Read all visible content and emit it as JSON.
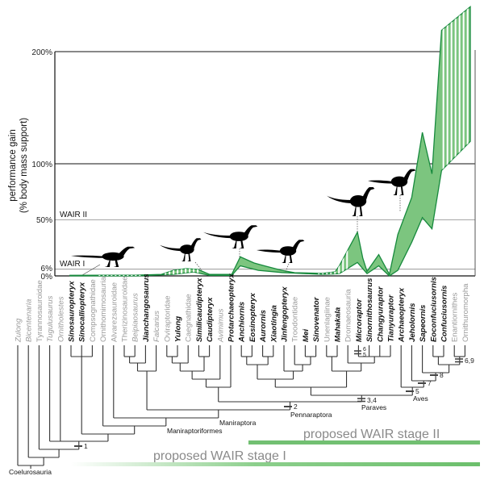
{
  "chart_data": {
    "type": "area",
    "ylabel_line1": "performance gain",
    "ylabel_line2": "(% body mass support)",
    "yticks": [
      "200%",
      "100%",
      "50%",
      "6%",
      "0%"
    ],
    "ytick_values": [
      200,
      100,
      50,
      6,
      0
    ],
    "ylim": [
      0,
      200
    ],
    "reference_lines": [
      {
        "label": "WAIR I",
        "value": 6
      },
      {
        "label": "WAIR II",
        "value": 50
      }
    ],
    "x_categories": "taxa (same order as phylogeny.taxa)",
    "series": [
      {
        "upper": [
          [
            4.9,
            0.5
          ],
          [
            11.2,
            0.7
          ],
          [
            13.5,
            1.4
          ],
          [
            14.6,
            5
          ],
          [
            15.8,
            6.5
          ],
          [
            16.9,
            5.8
          ],
          [
            18.0,
            1.4
          ],
          [
            20.1,
            1.4
          ],
          [
            20.9,
            17
          ],
          [
            22.2,
            11.5
          ],
          [
            23.3,
            8.6
          ],
          [
            24.8,
            5
          ],
          [
            26.0,
            2.9
          ],
          [
            28.6,
            2.2
          ],
          [
            29.8,
            3.6
          ],
          [
            30.2,
            9
          ],
          [
            31.9,
            39
          ],
          [
            32.4,
            16
          ],
          [
            32.8,
            4
          ],
          [
            33.9,
            19
          ],
          [
            34.9,
            1.4
          ],
          [
            35.7,
            37
          ],
          [
            37.0,
            70
          ],
          [
            38.0,
            128
          ],
          [
            38.9,
            91
          ],
          [
            39.8,
            219
          ],
          [
            42.5,
            240
          ]
        ],
        "lower": [
          [
            4.9,
            0
          ],
          [
            11.2,
            0
          ],
          [
            14.6,
            1.4
          ],
          [
            16.5,
            3.5
          ],
          [
            18.0,
            0.5
          ],
          [
            20.1,
            0.5
          ],
          [
            20.9,
            9
          ],
          [
            22.6,
            5
          ],
          [
            24.8,
            3
          ],
          [
            28.6,
            1.4
          ],
          [
            30.2,
            2
          ],
          [
            31.9,
            12
          ],
          [
            32.8,
            2
          ],
          [
            33.9,
            9
          ],
          [
            34.9,
            0
          ],
          [
            35.7,
            5
          ],
          [
            37.0,
            30
          ],
          [
            38.0,
            52
          ],
          [
            38.9,
            42
          ],
          [
            39.8,
            94
          ],
          [
            42.5,
            120
          ]
        ],
        "uncertain_ranges": [
          [
            7.6,
            11.4
          ],
          [
            13.8,
            17.0
          ],
          [
            28.2,
            31.0
          ],
          [
            39.9,
            42.6
          ]
        ]
      }
    ],
    "colors": {
      "fill": "#7cc57f",
      "stroke": "#178a3d",
      "tree": "#333333",
      "gray_taxon": "#9a9a9a"
    },
    "silhouettes": [
      "compsognathid-silhouette",
      "oviraptorosaur-silhouette",
      "paravian-silhouette",
      "anchiornis-silhouette",
      "microraptor-silhouette",
      "archaeopteryx-silhouette"
    ]
  },
  "phylogeny": {
    "taxa": [
      {
        "name": "Zulong",
        "gray": true,
        "italic": true
      },
      {
        "name": "Bicentenaria",
        "gray": true,
        "italic": true
      },
      {
        "name": "Tyrannosauroidae",
        "gray": true,
        "italic": false
      },
      {
        "name": "Tugulusaurus",
        "gray": true,
        "italic": true
      },
      {
        "name": "Ornitholestes",
        "gray": true,
        "italic": true
      },
      {
        "name": "Sinosauropteryx",
        "gray": false,
        "italic": true
      },
      {
        "name": "Sinocalliopteryx",
        "gray": false,
        "italic": true
      },
      {
        "name": "Compsognathidae",
        "gray": true,
        "italic": false
      },
      {
        "name": "Ornithomimosauria",
        "gray": true,
        "italic": false
      },
      {
        "name": "Alvarezsauroidae",
        "gray": true,
        "italic": false
      },
      {
        "name": "Therizinosauroidae",
        "gray": true,
        "italic": false
      },
      {
        "name": "Beipiaosaurus",
        "gray": true,
        "italic": true
      },
      {
        "name": "Jianchangosaurus",
        "gray": false,
        "italic": true
      },
      {
        "name": "Falcarius",
        "gray": true,
        "italic": true
      },
      {
        "name": "Oviraptoridae",
        "gray": true,
        "italic": false
      },
      {
        "name": "Yulong",
        "gray": false,
        "italic": true
      },
      {
        "name": "Caegnathidae",
        "gray": true,
        "italic": false
      },
      {
        "name": "Similicaudipteryx",
        "gray": false,
        "italic": true
      },
      {
        "name": "Caudipteryx",
        "gray": false,
        "italic": true
      },
      {
        "name": "Avimimus",
        "gray": true,
        "italic": true
      },
      {
        "name": "Protarchaeopteryx",
        "gray": false,
        "italic": true
      },
      {
        "name": "Anchiornis",
        "gray": false,
        "italic": true
      },
      {
        "name": "Eosinopteryx",
        "gray": false,
        "italic": true
      },
      {
        "name": "Aurornis",
        "gray": false,
        "italic": true
      },
      {
        "name": "Xiaotingia",
        "gray": false,
        "italic": true
      },
      {
        "name": "Jinfengopteryx",
        "gray": false,
        "italic": true
      },
      {
        "name": "Troodontidae",
        "gray": true,
        "italic": false
      },
      {
        "name": "Mei",
        "gray": false,
        "italic": true
      },
      {
        "name": "Sinovenator",
        "gray": false,
        "italic": true
      },
      {
        "name": "Unenlagiinae",
        "gray": true,
        "italic": false
      },
      {
        "name": "Mahakala",
        "gray": false,
        "italic": true
      },
      {
        "name": "Dromaeosauria",
        "gray": true,
        "italic": false
      },
      {
        "name": "Microraptor",
        "gray": false,
        "italic": true
      },
      {
        "name": "Sinornithosaurus",
        "gray": false,
        "italic": true
      },
      {
        "name": "Changyuraptor",
        "gray": false,
        "italic": true
      },
      {
        "name": "Tianyuraptor",
        "gray": false,
        "italic": true
      },
      {
        "name": "Archaeopteryx",
        "gray": false,
        "italic": true
      },
      {
        "name": "Jeholornis",
        "gray": false,
        "italic": true
      },
      {
        "name": "Sapeornis",
        "gray": false,
        "italic": true
      },
      {
        "name": "Eoconfuciusornis",
        "gray": false,
        "italic": true
      },
      {
        "name": "Confuciusornis",
        "gray": false,
        "italic": true
      },
      {
        "name": "Enantiornithes",
        "gray": true,
        "italic": false
      },
      {
        "name": "Ornithuromorpha",
        "gray": true,
        "italic": false
      }
    ],
    "clades": {
      "coelurosauria": "Coelurosauria",
      "maniraptoriformes": "Maniraptoriformes",
      "maniraptora": "Maniraptora",
      "pennaraptora": "Pennaraptora",
      "paraves": "Paraves",
      "aves": "Aves"
    },
    "markers": {
      "m1": "1",
      "m2": "2",
      "m34": "3,4",
      "m5": "5",
      "m7": "7",
      "m8": "8",
      "m69": "6,9",
      "m6top": "6",
      "m5b": "5"
    },
    "stages": {
      "stage2": "proposed WAIR stage II",
      "stage1": "proposed WAIR stage I"
    }
  }
}
